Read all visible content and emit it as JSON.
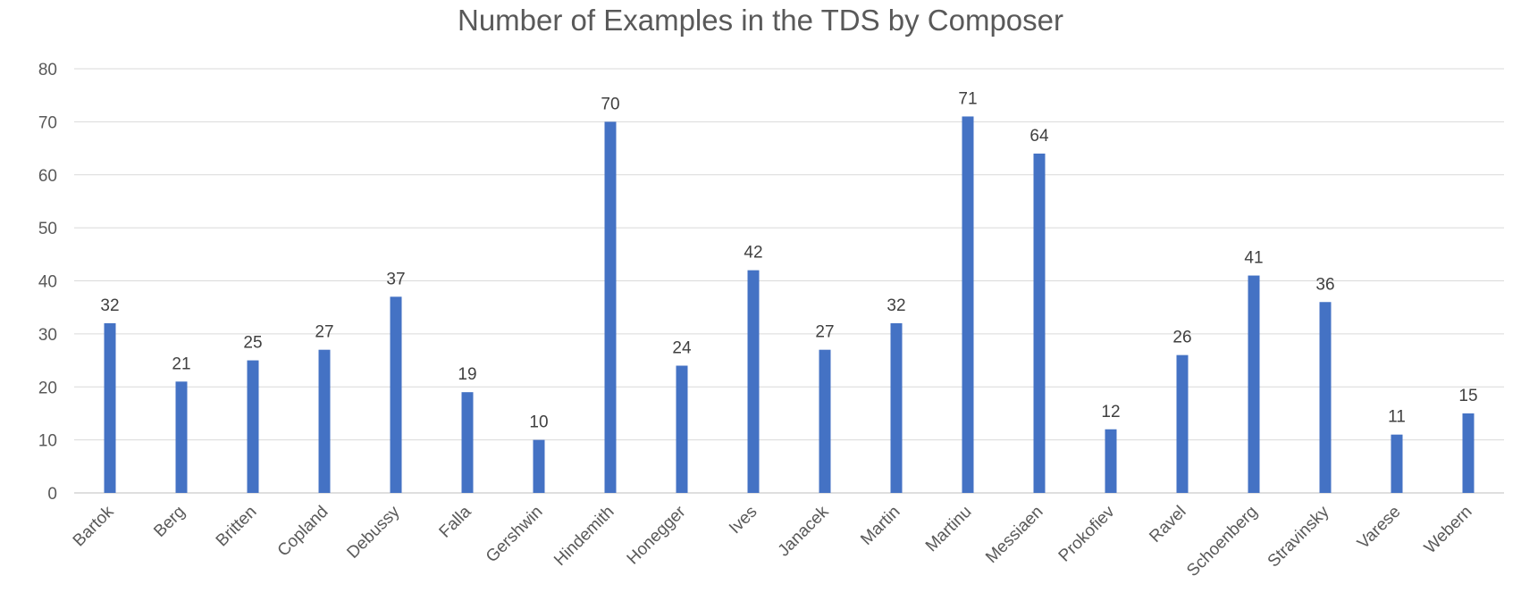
{
  "chart_data": {
    "type": "bar",
    "title": "Number of Examples in the TDS by Composer",
    "xlabel": "",
    "ylabel": "",
    "categories": [
      "Bartok",
      "Berg",
      "Britten",
      "Copland",
      "Debussy",
      "Falla",
      "Gershwin",
      "Hindemith",
      "Honegger",
      "Ives",
      "Janacek",
      "Martin",
      "Martinu",
      "Messiaen",
      "Prokofiev",
      "Ravel",
      "Schoenberg",
      "Stravinsky",
      "Varese",
      "Webern"
    ],
    "values": [
      32,
      21,
      25,
      27,
      37,
      19,
      10,
      70,
      24,
      42,
      27,
      32,
      71,
      64,
      12,
      26,
      41,
      36,
      11,
      15
    ],
    "ylim": [
      0,
      80
    ],
    "yticks": [
      0,
      10,
      20,
      30,
      40,
      50,
      60,
      70,
      80
    ],
    "grid": true,
    "legend": "none",
    "data_labels": true,
    "colors": {
      "bar": "#4472C4",
      "grid": "#d9d9d9",
      "axis": "#bfbfbf"
    }
  }
}
